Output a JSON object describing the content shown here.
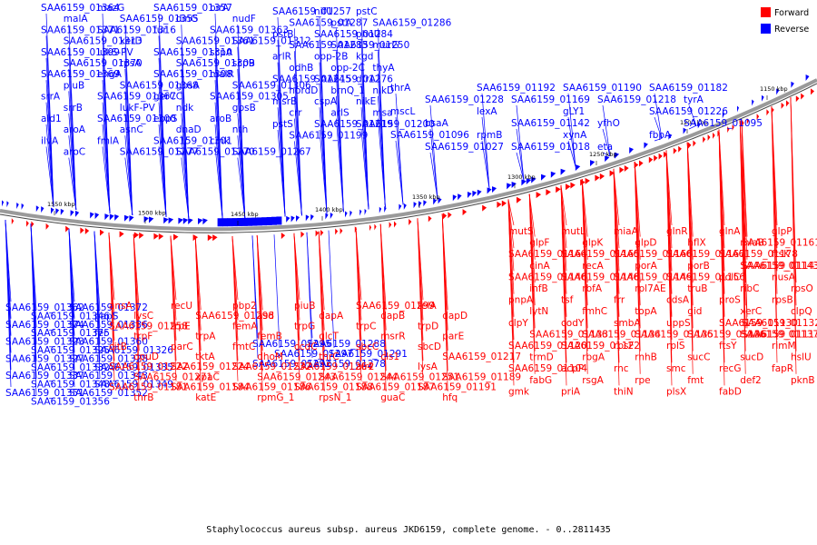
{
  "caption": "Staphylococcus aureus subsp. aureus JKD6159, complete genome. - 0..2811435",
  "colors": {
    "forward": "#ff0000",
    "reverse": "#0000ff",
    "backbone": "#777777"
  },
  "legend": [
    {
      "label": "Forward",
      "color": "#ff0000"
    },
    {
      "label": "Reverse",
      "color": "#0000ff"
    }
  ],
  "ticks": [
    "1550 kbp",
    "1500 kbp",
    "1450 kbp",
    "1400 kbp",
    "1350 kbp",
    "1300 kbp",
    "1250 kbp",
    "1200 kbp",
    "1150 kbp"
  ],
  "reverse_top": [
    "SAA6159_01364",
    "mazG",
    "SAA6159_01357",
    "birA",
    "malA",
    "SAA6159_01355",
    "dinG",
    "nudF",
    "SAA6159_01371",
    "SAA6159_01316",
    "fur",
    "SAA6159_01363",
    "SAA6159_01313",
    "xerD",
    "SAA6159_01361",
    "SAA6159_01312",
    "SAA6159_01399",
    "lukS-PV",
    "SAA6159_01310",
    "scpA",
    "SAA6159_01370",
    "rpsA",
    "SAA6159_01309",
    "scpB",
    "SAA6159_01369",
    "engA",
    "SAA6159_01308",
    "malR",
    "pluB",
    "SAA6159_01368",
    "gpsA",
    "SAA6159_01306",
    "srrA",
    "SAA6159_01367",
    "gerCC",
    "SAA6159_01305",
    "srrB",
    "lukF-PV",
    "ndk",
    "gpsB",
    "ald1",
    "SAA6159_01300",
    "ebpS",
    "aroB",
    "aroA",
    "asnC",
    "dnaD",
    "nth",
    "ilvA",
    "fmlA",
    "SAA6159_01301",
    "cmk",
    "aroC",
    "SAA6159_01277",
    "SAA6159_01270",
    "SAA6159_01267",
    "SAA6159_01257",
    "nifU",
    "pstC",
    "SAA6159_01287",
    "pstA",
    "SAA6159_01286",
    "pstB",
    "SAA6159_01284",
    "phoU",
    "SAA6159_01283",
    "SAA6159_01250",
    "murG",
    "arlR",
    "opp-2B",
    "kgd",
    "odhB",
    "opp-2C",
    "thyA",
    "SAA6159_01245",
    "SAA6159_01276",
    "dfrA",
    "nordD",
    "brnQ_1",
    "nikD",
    "msrB",
    "cspA",
    "nikE",
    "crr",
    "arlS",
    "msa",
    "pstS",
    "SAA6159_01219",
    "SAA6159_01200",
    "SAA6159_01199",
    "thrA",
    "SAA6159_01192",
    "SAA6159_01190",
    "SAA6159_01182",
    "SAA6159_01228",
    "SAA6159_01169",
    "SAA6159_01218",
    "tyrA",
    "mscL",
    "lexA",
    "gLY1",
    "SAA6159_01226",
    "bsaA",
    "SAA6159_01142",
    "yfhO",
    "SAA6159_01095",
    "SAA6159_01096",
    "rpmB",
    "xynA",
    "fbpA",
    "SAA6159_01027",
    "SAA6159_01018",
    "eta"
  ],
  "reverse_bottom": [
    "SAA6159_01362",
    "SAA6159_01372",
    "SAA6159_01346",
    "papS",
    "SAA6159_01374",
    "SAA6159_01336",
    "SAA6159_01375",
    "fer",
    "SAA6159_01323",
    "SAA6159_01360",
    "SAA6159_01325",
    "SAA6159_01326",
    "SAA6159_01327",
    "SAA6159_01328",
    "SAA6159_01332",
    "SAA6159_01335",
    "SAA6159_01337",
    "SAA6159_01343",
    "SAA6159_01348",
    "SAA6159_01349",
    "SAA6159_01351",
    "SAA6159_01352",
    "SAA6159_01356",
    "SAA6159_01295",
    "SAA6159_01288",
    "SAA6159_01297",
    "SAA6159_01291",
    "SAA6159_01292",
    "SAA6159_01278"
  ],
  "forward_bottom": [
    "ansA",
    "recU",
    "pbp2",
    "piuB",
    "SAA6159_01299",
    "telA",
    "lysC",
    "SAA6159_01298",
    "asd",
    "dapA",
    "dapB",
    "dapD",
    "SAA6159_01258",
    "trpE",
    "femA",
    "trpG",
    "trpC",
    "trpD",
    "trpF",
    "trpA",
    "femB",
    "glcT",
    "msrR",
    "parE",
    "citB",
    "parC",
    "fmtC",
    "ccdC",
    "sbcC",
    "sbcD",
    "opuD",
    "tktA",
    "dhoM",
    "thrC",
    "cls1",
    "SAA6159_01217",
    "SAA6159_01222",
    "SAA6159_01224",
    "SAA6159_01232",
    "SAA6159_01264",
    "alr2",
    "lysA",
    "SAA6159_01271",
    "xpaC",
    "SAA6159_01243",
    "SAA6159_01244",
    "SAA6159_01251",
    "SAA6159_01189",
    "SAA6159_01181",
    "SAA6159_01184",
    "SAA6159_01186",
    "SAA6159_01188",
    "SAA6159_01187",
    "SAA6159_01191",
    "thrB",
    "katE",
    "rpmG_1",
    "rpsN_1",
    "guaC",
    "hfq",
    "mutS",
    "mutL",
    "miaA",
    "glnR",
    "glnA",
    "glpP",
    "glpF",
    "glpK",
    "glpD",
    "hflX",
    "miaB",
    "SAA6159_01161",
    "SAA6159_01164",
    "SAA6159_01165",
    "SAA6159_01166",
    "SAA6159_01167",
    "SAA6159_01178",
    "ftsK",
    "cinA",
    "recA",
    "porA",
    "porB",
    "SAA6159_01143",
    "SAA6159_01141",
    "SAA6159_01146",
    "SAA6159_01148",
    "SAA6159_01149",
    "SAA6159_01156",
    "polC",
    "nusA",
    "infB",
    "rbfA",
    "rpl7AE",
    "truB",
    "ribC",
    "rpsO",
    "pnpA",
    "tsf",
    "frr",
    "cdsA",
    "proS",
    "rpsB",
    "lytN",
    "fmhC",
    "topA",
    "gid",
    "xerC",
    "clpQ",
    "clpY",
    "codY",
    "smbA",
    "uppS",
    "SAA6159_01130",
    "SAA6159_01132",
    "SAA6159_01133",
    "SAA6159_01134",
    "SAA6159_01135",
    "SAA6159_01136",
    "SAA6159_01137",
    "SAA6159_01117",
    "SAA6159_01120",
    "SAA6159_01122",
    "rpsF",
    "rplS",
    "ftsY",
    "rimM",
    "trmD",
    "rbgA",
    "rnhB",
    "sucC",
    "sucD",
    "hslU",
    "SAA6159_01104",
    "acpP",
    "rnc",
    "smc",
    "recG",
    "fapR",
    "fabG",
    "rsgA",
    "rpe",
    "fmt",
    "def2",
    "pknB",
    "gmk",
    "priA",
    "thiN",
    "plsX",
    "fabD"
  ]
}
